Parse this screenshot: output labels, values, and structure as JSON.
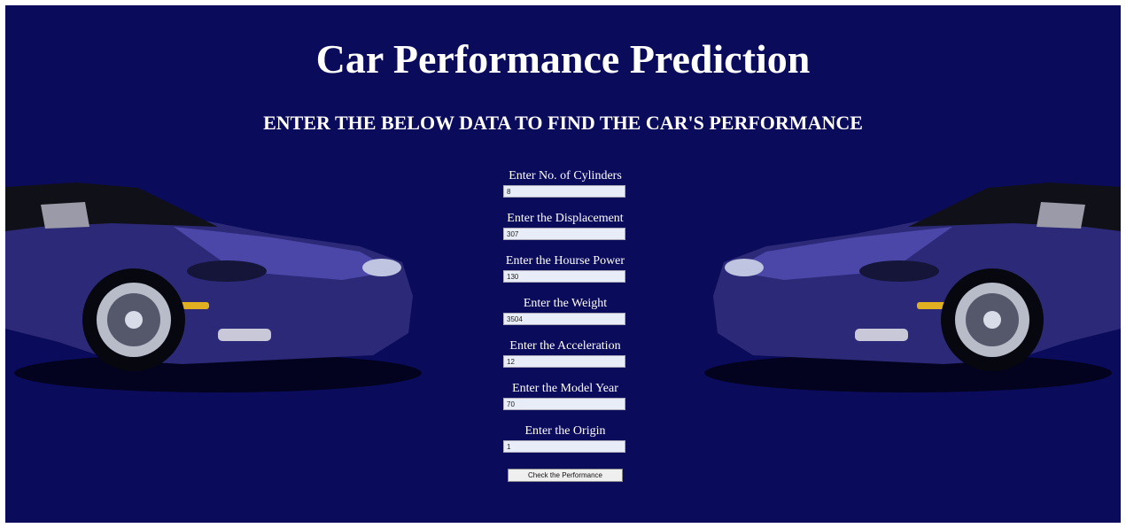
{
  "header": {
    "title": "Car Performance Prediction",
    "subtitle": "ENTER THE BELOW DATA TO FIND THE CAR'S PERFORMANCE"
  },
  "form": {
    "fields": [
      {
        "label": "Enter No. of Cylinders",
        "value": "8"
      },
      {
        "label": "Enter the Displacement",
        "value": "307"
      },
      {
        "label": "Enter the Hourse Power",
        "value": "130"
      },
      {
        "label": "Enter the Weight",
        "value": "3504"
      },
      {
        "label": "Enter the Acceleration",
        "value": "12"
      },
      {
        "label": "Enter the Model Year",
        "value": "70"
      },
      {
        "label": "Enter the Origin",
        "value": "1"
      }
    ],
    "button": "Check the Performance"
  }
}
